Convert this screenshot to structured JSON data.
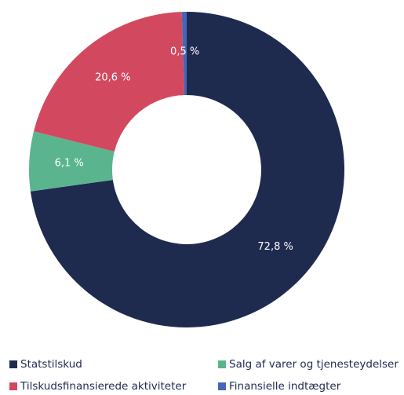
{
  "chart_data": {
    "type": "donut",
    "categories": [
      "Statstilskud",
      "Salg af varer og tjenesteydelser",
      "Tilskudsfinansierede aktiviteter",
      "Finansielle indtægter"
    ],
    "values": [
      72.8,
      6.1,
      20.6,
      0.5
    ],
    "value_labels": [
      "72,8 %",
      "6,1 %",
      "20,6 %",
      "0,5 %"
    ],
    "colors": [
      "#1f2a4f",
      "#5ab58f",
      "#d2495f",
      "#4466b8"
    ],
    "legend": "bottom"
  }
}
